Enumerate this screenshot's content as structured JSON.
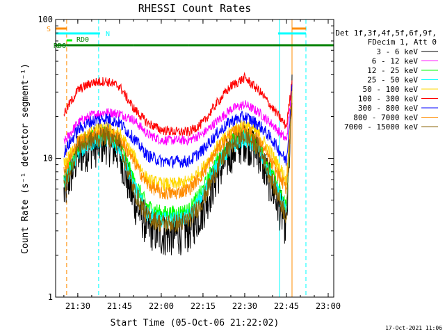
{
  "chart_data": {
    "type": "line",
    "title": "RHESSI Count Rates",
    "xlabel": "Start Time (05-Oct-06 21:22:02)",
    "ylabel": "Count Rate (s⁻¹ detector segment⁻¹)",
    "x_ticks": [
      "21:30",
      "21:45",
      "22:00",
      "22:15",
      "22:30",
      "22:45",
      "23:00"
    ],
    "y_ticks": [
      "1",
      "10",
      "100"
    ],
    "xlim": [
      "21:22:02",
      "23:02:00"
    ],
    "ylim": [
      1,
      100
    ],
    "yscale": "log",
    "legend_position": "right",
    "legend_header": [
      "Det 1f,3f,4f,5f,6f,9f,",
      "FDecim 1, Att 0"
    ],
    "timestamp": "17-Oct-2021 11:06",
    "times": [
      "21:25",
      "21:30",
      "21:35",
      "21:40",
      "21:45",
      "21:50",
      "21:55",
      "22:00",
      "22:05",
      "22:10",
      "22:15",
      "22:20",
      "22:25",
      "22:30",
      "22:35",
      "22:40",
      "22:45",
      "22:47"
    ],
    "series": [
      {
        "name": "3 - 6 keV",
        "color": "#000000",
        "values": [
          5.5,
          10.5,
          12.0,
          13.0,
          11.0,
          5.0,
          3.2,
          2.8,
          2.8,
          3.0,
          4.3,
          7.5,
          11.0,
          13.5,
          11.0,
          6.0,
          3.2,
          30.0
        ]
      },
      {
        "name": "6 - 12 keV",
        "color": "#ff00ff",
        "values": [
          13.0,
          18.0,
          20.5,
          21.5,
          21.0,
          19.0,
          15.0,
          13.5,
          13.5,
          13.5,
          15.0,
          18.5,
          22.5,
          24.5,
          21.5,
          17.5,
          13.5,
          33.0
        ]
      },
      {
        "name": "12 - 25 keV",
        "color": "#00ff00",
        "values": [
          7.0,
          12.0,
          14.0,
          15.0,
          13.0,
          7.0,
          4.5,
          4.0,
          4.0,
          4.2,
          6.0,
          9.5,
          13.0,
          15.0,
          12.5,
          7.5,
          4.5,
          30.0
        ]
      },
      {
        "name": "25 - 50 keV",
        "color": "#00ffff",
        "values": [
          6.5,
          11.0,
          13.0,
          14.0,
          12.0,
          6.5,
          4.0,
          3.6,
          3.6,
          3.8,
          5.5,
          9.0,
          12.0,
          14.0,
          11.5,
          7.0,
          4.0,
          30.0
        ]
      },
      {
        "name": "50 - 100 keV",
        "color": "#ffd700",
        "values": [
          9.0,
          13.0,
          15.5,
          16.5,
          15.0,
          10.5,
          7.0,
          6.5,
          6.5,
          6.8,
          8.5,
          12.0,
          15.5,
          17.5,
          15.0,
          10.5,
          7.0,
          31.0
        ]
      },
      {
        "name": "100 - 300 keV",
        "color": "#ff0000",
        "values": [
          21.0,
          31.0,
          35.0,
          36.0,
          33.0,
          23.0,
          18.0,
          16.0,
          15.5,
          15.5,
          18.0,
          25.0,
          33.0,
          38.0,
          31.0,
          23.0,
          17.0,
          36.0
        ]
      },
      {
        "name": "300 - 800 keV",
        "color": "#0000ff",
        "values": [
          11.0,
          16.0,
          18.5,
          19.5,
          18.0,
          14.0,
          10.5,
          9.5,
          9.5,
          9.5,
          11.5,
          15.0,
          18.5,
          20.0,
          17.5,
          13.5,
          9.5,
          32.0
        ]
      },
      {
        "name": "800 - 7000 keV",
        "color": "#ff8c00",
        "values": [
          8.0,
          13.0,
          15.0,
          15.5,
          14.0,
          9.5,
          6.5,
          5.6,
          5.6,
          6.0,
          7.8,
          11.5,
          15.0,
          16.5,
          13.5,
          9.0,
          6.0,
          30.0
        ]
      },
      {
        "name": "7000 - 15000 keV",
        "color": "#8b6508",
        "values": [
          6.0,
          12.0,
          13.5,
          14.5,
          13.0,
          6.0,
          3.8,
          3.4,
          3.4,
          3.6,
          5.0,
          8.5,
          12.5,
          14.5,
          12.0,
          6.8,
          3.8,
          29.0
        ]
      }
    ],
    "state_bars": [
      {
        "label": "S",
        "color": "#ff8c00",
        "segments": [
          [
            "21:22:02",
            "21:26:00"
          ],
          [
            "22:47:00",
            "22:52:00"
          ]
        ]
      },
      {
        "label": "N",
        "color": "#00ffff",
        "segments": [
          [
            "21:22:02",
            "21:38:00"
          ],
          [
            "22:42:00",
            "22:52:00"
          ]
        ]
      },
      {
        "label": "RD0",
        "color": "#00ff00",
        "segments": [
          [
            "21:26:00",
            "21:28:00"
          ]
        ]
      },
      {
        "label": "RD6",
        "color": "#008000",
        "segments": [
          [
            "21:22:02",
            "21:26:00"
          ],
          [
            "21:26:00",
            "21:50:00"
          ],
          [
            "21:50:00",
            "22:10:00"
          ],
          [
            "22:10:00",
            "22:40:00"
          ],
          [
            "22:40:00",
            "23:02:00"
          ]
        ]
      }
    ],
    "vertical_markers": [
      {
        "time": "21:22:02",
        "color": "#00ff00",
        "style": "solid"
      },
      {
        "time": "21:26:00",
        "color": "#ff8c00",
        "style": "dashed"
      },
      {
        "time": "21:37:30",
        "color": "#00ffff",
        "style": "dashed"
      },
      {
        "time": "22:42:30",
        "color": "#00ffff",
        "style": "solid"
      },
      {
        "time": "22:47:00",
        "color": "#ff8c00",
        "style": "solid"
      },
      {
        "time": "22:52:00",
        "color": "#00ffff",
        "style": "dashed"
      }
    ]
  }
}
